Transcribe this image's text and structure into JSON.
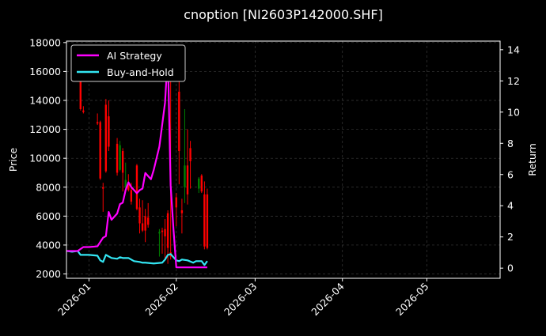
{
  "chart_data": {
    "type": "line",
    "title": "cnoption [NI2603P142000.SHF]",
    "ylabel_left": "Price",
    "ylabel_right": "Return",
    "ylim_left": [
      1700,
      18100
    ],
    "ylim_right": [
      -0.65,
      14.55
    ],
    "x_range": [
      "2025-12-24",
      "2026-05-27"
    ],
    "x_ticks": [
      {
        "date": "2026-01-01",
        "label": "2026-01"
      },
      {
        "date": "2026-02-01",
        "label": "2026-02"
      },
      {
        "date": "2026-03-01",
        "label": "2026-03"
      },
      {
        "date": "2026-04-01",
        "label": "2026-04"
      },
      {
        "date": "2026-05-01",
        "label": "2026-05"
      }
    ],
    "y_ticks_left": [
      2000,
      4000,
      6000,
      8000,
      10000,
      12000,
      14000,
      16000,
      18000
    ],
    "y_ticks_right": [
      0,
      2,
      4,
      6,
      8,
      10,
      12,
      14
    ],
    "grid": true,
    "legend_placement": "top-left",
    "colors": {
      "background": "#000000",
      "axes_edge": "#ffffff",
      "grid": "#3a3a3a",
      "up_candle": "#008000",
      "down_candle": "#ff0000"
    },
    "series": [
      {
        "name": "AI Strategy",
        "color": "#ff00ff",
        "axis": "right",
        "x": [
          "2025-12-24",
          "2025-12-26",
          "2025-12-28",
          "2025-12-30",
          "2026-01-01",
          "2026-01-04",
          "2026-01-06",
          "2026-01-07",
          "2026-01-08",
          "2026-01-09",
          "2026-01-11",
          "2026-01-12",
          "2026-01-13",
          "2026-01-14",
          "2026-01-15",
          "2026-01-16",
          "2026-01-18",
          "2026-01-19",
          "2026-01-20",
          "2026-01-21",
          "2026-01-22",
          "2026-01-23",
          "2026-01-24",
          "2026-01-26",
          "2026-01-28",
          "2026-01-29",
          "2026-01-30",
          "2026-01-31",
          "2026-02-01",
          "2026-02-02",
          "2026-02-03",
          "2026-02-05",
          "2026-02-10",
          "2026-02-12"
        ],
        "values": [
          1.1,
          1.1,
          1.1,
          1.35,
          1.35,
          1.4,
          1.95,
          2.05,
          3.6,
          3.1,
          3.5,
          4.1,
          4.2,
          5.0,
          5.5,
          5.2,
          4.8,
          5.0,
          5.1,
          6.1,
          5.9,
          5.7,
          6.3,
          7.8,
          10.6,
          13.7,
          5.3,
          2.5,
          0.05,
          0.05,
          0.05,
          0.05,
          0.05,
          0.05
        ]
      },
      {
        "name": "Buy-and-Hold",
        "color": "#33e5f2",
        "axis": "right",
        "x": [
          "2025-12-24",
          "2025-12-26",
          "2025-12-28",
          "2025-12-29",
          "2026-01-01",
          "2026-01-04",
          "2026-01-05",
          "2026-01-06",
          "2026-01-07",
          "2026-01-09",
          "2026-01-11",
          "2026-01-12",
          "2026-01-13",
          "2026-01-15",
          "2026-01-17",
          "2026-01-19",
          "2026-01-20",
          "2026-01-21",
          "2026-01-24",
          "2026-01-27",
          "2026-01-28",
          "2026-01-29",
          "2026-01-30",
          "2026-02-01",
          "2026-02-02",
          "2026-02-03",
          "2026-02-05",
          "2026-02-07",
          "2026-02-08",
          "2026-02-10",
          "2026-02-11",
          "2026-02-12"
        ],
        "values": [
          1.1,
          1.05,
          1.1,
          0.85,
          0.85,
          0.8,
          0.5,
          0.4,
          0.85,
          0.65,
          0.6,
          0.7,
          0.65,
          0.65,
          0.45,
          0.4,
          0.35,
          0.35,
          0.3,
          0.35,
          0.55,
          0.85,
          0.9,
          0.5,
          0.45,
          0.55,
          0.5,
          0.35,
          0.45,
          0.45,
          0.2,
          0.45
        ]
      }
    ],
    "candles": [
      {
        "date": "2025-12-29",
        "open": 15400,
        "close": 13400,
        "high": 16300,
        "low": 13300
      },
      {
        "date": "2025-12-30",
        "open": 13300,
        "close": 13200,
        "high": 13600,
        "low": 13100
      },
      {
        "date": "2026-01-04",
        "open": 12500,
        "close": 12400,
        "high": 13100,
        "low": 12300
      },
      {
        "date": "2026-01-05",
        "open": 12500,
        "close": 8600,
        "high": 12600,
        "low": 8500
      },
      {
        "date": "2026-01-06",
        "open": 8000,
        "close": 7900,
        "high": 8300,
        "low": 6300
      },
      {
        "date": "2026-01-07",
        "open": 13700,
        "close": 9100,
        "high": 14100,
        "low": 9000
      },
      {
        "date": "2026-01-08",
        "open": 12900,
        "close": 10800,
        "high": 14000,
        "low": 10500
      },
      {
        "date": "2026-01-11",
        "open": 11000,
        "close": 9000,
        "high": 11400,
        "low": 8800
      },
      {
        "date": "2026-01-12",
        "open": 9200,
        "close": 10900,
        "high": 11200,
        "low": 9100
      },
      {
        "date": "2026-01-13",
        "open": 10500,
        "close": 9000,
        "high": 10700,
        "low": 7700
      },
      {
        "date": "2026-01-14",
        "open": 8000,
        "close": 8500,
        "high": 9700,
        "low": 7800
      },
      {
        "date": "2026-01-15",
        "open": 8200,
        "close": 7800,
        "high": 8900,
        "low": 7700
      },
      {
        "date": "2026-01-16",
        "open": 7800,
        "close": 7000,
        "high": 8300,
        "low": 6800
      },
      {
        "date": "2026-01-18",
        "open": 9500,
        "close": 6500,
        "high": 9600,
        "low": 6400
      },
      {
        "date": "2026-01-19",
        "open": 6600,
        "close": 5500,
        "high": 7200,
        "low": 4800
      },
      {
        "date": "2026-01-20",
        "open": 5500,
        "close": 5000,
        "high": 7100,
        "low": 4900
      },
      {
        "date": "2026-01-21",
        "open": 6000,
        "close": 5000,
        "high": 6500,
        "low": 4200
      },
      {
        "date": "2026-01-22",
        "open": 5900,
        "close": 5400,
        "high": 6900,
        "low": 5200
      },
      {
        "date": "2026-01-26",
        "open": 4800,
        "close": 4900,
        "high": 5100,
        "low": 3200
      },
      {
        "date": "2026-01-27",
        "open": 5000,
        "close": 4900,
        "high": 5200,
        "low": 3400
      },
      {
        "date": "2026-01-28",
        "open": 5100,
        "close": 4600,
        "high": 5800,
        "low": 3000
      },
      {
        "date": "2026-01-29",
        "open": 6200,
        "close": 3800,
        "high": 6400,
        "low": 2700
      },
      {
        "date": "2026-01-30",
        "open": 3500,
        "close": 3200,
        "high": 16100,
        "low": 3000
      },
      {
        "date": "2026-02-01",
        "open": 7300,
        "close": 6600,
        "high": 7600,
        "low": 5300
      },
      {
        "date": "2026-02-02",
        "open": 14600,
        "close": 10500,
        "high": 15600,
        "low": 8200
      },
      {
        "date": "2026-02-03",
        "open": 6400,
        "close": 6200,
        "high": 7200,
        "low": 4800
      },
      {
        "date": "2026-02-04",
        "open": 8000,
        "close": 9500,
        "high": 13400,
        "low": 6900
      },
      {
        "date": "2026-02-05",
        "open": 9500,
        "close": 7500,
        "high": 12000,
        "low": 6800
      },
      {
        "date": "2026-02-06",
        "open": 10700,
        "close": 9800,
        "high": 11200,
        "low": 7900
      },
      {
        "date": "2026-02-09",
        "open": 7900,
        "close": 8600,
        "high": 8700,
        "low": 7600
      },
      {
        "date": "2026-02-10",
        "open": 8800,
        "close": 7700,
        "high": 8900,
        "low": 7600
      },
      {
        "date": "2026-02-11",
        "open": 7500,
        "close": 3900,
        "high": 8400,
        "low": 3700
      },
      {
        "date": "2026-02-12",
        "open": 7500,
        "close": 3800,
        "high": 7900,
        "low": 3700
      }
    ]
  }
}
